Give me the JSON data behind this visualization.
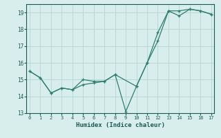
{
  "xlabel": "Humidex (Indice chaleur)",
  "background_color": "#d8eeed",
  "grid_color": "#b8d8d4",
  "line_color": "#2e7d6e",
  "series1_x": [
    0,
    1,
    2,
    3,
    4,
    5,
    6,
    7,
    8,
    9,
    10,
    11,
    12,
    13,
    14,
    15,
    16,
    17
  ],
  "series1_y": [
    15.5,
    15.1,
    14.2,
    14.5,
    14.4,
    15.0,
    14.9,
    14.9,
    15.3,
    13.1,
    14.6,
    16.0,
    17.8,
    19.1,
    19.1,
    19.2,
    19.1,
    18.9
  ],
  "series2_x": [
    0,
    1,
    2,
    3,
    4,
    5,
    6,
    7,
    8,
    10,
    11,
    12,
    13,
    14,
    15,
    16,
    17
  ],
  "series2_y": [
    15.5,
    15.1,
    14.2,
    14.5,
    14.4,
    14.7,
    14.8,
    14.9,
    15.3,
    14.6,
    16.0,
    17.3,
    19.1,
    18.8,
    19.2,
    19.1,
    18.9
  ],
  "xlim": [
    0,
    17
  ],
  "ylim": [
    13,
    19.5
  ],
  "xticks": [
    0,
    1,
    2,
    3,
    4,
    5,
    6,
    7,
    8,
    9,
    10,
    11,
    12,
    13,
    14,
    15,
    16,
    17
  ],
  "yticks": [
    13,
    14,
    15,
    16,
    17,
    18,
    19
  ]
}
